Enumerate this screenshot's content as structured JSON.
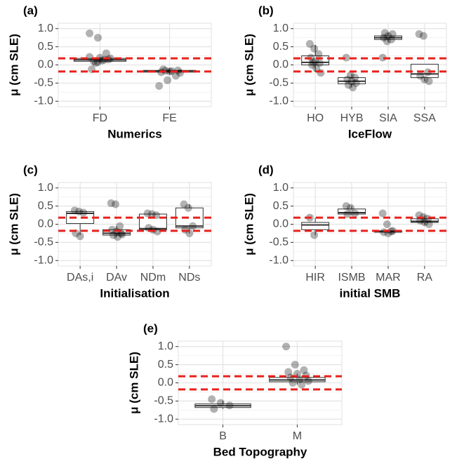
{
  "chart_data": [
    {
      "type": "box",
      "panel_label": "(a)",
      "y_label": "μ (cm SLE)",
      "x_label": "Numerics",
      "categories": [
        "FD",
        "FE"
      ],
      "boxes": [
        {
          "whislo": 0.05,
          "q1": 0.1,
          "med": 0.14,
          "q3": 0.18,
          "whishi": 0.22
        },
        {
          "whislo": -0.25,
          "q1": -0.2,
          "med": -0.17,
          "q3": -0.15,
          "whishi": -0.1
        }
      ],
      "points": [
        [
          0.87,
          0.75,
          0.32,
          -0.12,
          0.2,
          0.15,
          0.1,
          0.12,
          0.18,
          0.05,
          0.14,
          0.22,
          0.08
        ],
        [
          -0.58,
          -0.42,
          -0.3,
          -0.2,
          -0.18,
          -0.15,
          -0.12,
          -0.17,
          -0.22,
          -0.16
        ]
      ],
      "ylim": [
        -1.15,
        1.15
      ],
      "yticks": [
        {
          "value": -1,
          "label": "-1.0"
        },
        {
          "value": -0.5,
          "label": "-0.5"
        },
        {
          "value": 0,
          "label": "0.0"
        },
        {
          "value": 0.5,
          "label": "0.5"
        },
        {
          "value": 1,
          "label": "1.0"
        }
      ],
      "reference_lines": [
        0.18,
        -0.18
      ],
      "reference_color": "#e8211b",
      "point_color": "#000000",
      "grid": true
    },
    {
      "type": "box",
      "panel_label": "(b)",
      "y_label": "μ (cm SLE)",
      "x_label": "IceFlow",
      "categories": [
        "HO",
        "HYB",
        "SIA",
        "SSA"
      ],
      "boxes": [
        {
          "whislo": -0.2,
          "q1": 0.0,
          "med": 0.07,
          "q3": 0.25,
          "whishi": 0.55
        },
        {
          "whislo": -0.62,
          "q1": -0.52,
          "med": -0.45,
          "q3": -0.35,
          "whishi": -0.25
        },
        {
          "whislo": 0.62,
          "q1": 0.7,
          "med": 0.75,
          "q3": 0.8,
          "whishi": 0.88
        },
        {
          "whislo": -0.45,
          "q1": -0.35,
          "med": -0.25,
          "q3": 0.02,
          "whishi": 0.02
        }
      ],
      "points": [
        [
          0.58,
          0.45,
          0.3,
          0.2,
          0.1,
          0.05,
          0.0,
          -0.1,
          -0.22,
          0.07
        ],
        [
          0.2,
          -0.28,
          -0.35,
          -0.4,
          -0.45,
          -0.5,
          -0.55,
          -0.62
        ],
        [
          0.2,
          0.65,
          0.7,
          0.75,
          0.8,
          0.85,
          0.88
        ],
        [
          0.85,
          0.8,
          -0.2,
          -0.3,
          -0.4,
          -0.45
        ]
      ],
      "ylim": [
        -1.15,
        1.15
      ],
      "yticks": [
        {
          "value": -1,
          "label": "-1.0"
        },
        {
          "value": -0.5,
          "label": "-0.5"
        },
        {
          "value": 0,
          "label": "0.0"
        },
        {
          "value": 0.5,
          "label": "0.5"
        },
        {
          "value": 1,
          "label": "1.0"
        }
      ],
      "reference_lines": [
        0.18,
        -0.18
      ],
      "reference_color": "#e8211b",
      "point_color": "#000000",
      "grid": true
    },
    {
      "type": "box",
      "panel_label": "(c)",
      "y_label": "μ (cm SLE)",
      "x_label": "Initialisation",
      "categories": [
        "DAs,i",
        "DAv",
        "NDm",
        "NDs"
      ],
      "boxes": [
        {
          "whislo": -0.3,
          "q1": 0.02,
          "med": 0.3,
          "q3": 0.35,
          "whishi": 0.38
        },
        {
          "whislo": -0.35,
          "q1": -0.3,
          "med": -0.25,
          "q3": -0.15,
          "whishi": -0.05
        },
        {
          "whislo": -0.22,
          "q1": -0.15,
          "med": -0.12,
          "q3": 0.28,
          "whishi": 0.3
        },
        {
          "whislo": -0.25,
          "q1": -0.1,
          "med": -0.05,
          "q3": 0.45,
          "whishi": 0.55
        }
      ],
      "points": [
        [
          0.38,
          0.35,
          0.32,
          -0.25,
          -0.33
        ],
        [
          0.58,
          0.55,
          -0.05,
          -0.15,
          -0.2,
          -0.25,
          -0.3,
          -0.35,
          -0.28
        ],
        [
          0.3,
          0.28,
          0.25,
          -0.1,
          -0.15,
          -0.2
        ],
        [
          0.55,
          0.45,
          -0.05,
          -0.15,
          -0.25
        ]
      ],
      "ylim": [
        -1.15,
        1.15
      ],
      "yticks": [
        {
          "value": -1,
          "label": "-1.0"
        },
        {
          "value": -0.5,
          "label": "-0.5"
        },
        {
          "value": 0,
          "label": "0.0"
        },
        {
          "value": 0.5,
          "label": "0.5"
        },
        {
          "value": 1,
          "label": "1.0"
        }
      ],
      "reference_lines": [
        0.18,
        -0.18
      ],
      "reference_color": "#e8211b",
      "point_color": "#000000",
      "grid": true
    },
    {
      "type": "box",
      "panel_label": "(d)",
      "y_label": "μ (cm SLE)",
      "x_label": "initial SMB",
      "categories": [
        "HIR",
        "ISMB",
        "MAR",
        "RA"
      ],
      "boxes": [
        {
          "whislo": -0.3,
          "q1": -0.15,
          "med": -0.02,
          "q3": 0.05,
          "whishi": 0.18
        },
        {
          "whislo": 0.25,
          "q1": 0.28,
          "med": 0.32,
          "q3": 0.42,
          "whishi": 0.5
        },
        {
          "whislo": -0.25,
          "q1": -0.22,
          "med": -0.2,
          "q3": -0.18,
          "whishi": -0.15
        },
        {
          "whislo": -0.02,
          "q1": 0.05,
          "med": 0.08,
          "q3": 0.15,
          "whishi": 0.25
        }
      ],
      "points": [
        [
          0.18,
          -0.3
        ],
        [
          0.5,
          0.45,
          0.3,
          0.28
        ],
        [
          0.3,
          0.0,
          -0.2,
          -0.22,
          -0.25,
          -0.18
        ],
        [
          0.25,
          0.2,
          0.15,
          0.1,
          0.05,
          0.0
        ]
      ],
      "ylim": [
        -1.15,
        1.15
      ],
      "yticks": [
        {
          "value": -1,
          "label": "-1.0"
        },
        {
          "value": -0.5,
          "label": "-0.5"
        },
        {
          "value": 0,
          "label": "0.0"
        },
        {
          "value": 0.5,
          "label": "0.5"
        },
        {
          "value": 1,
          "label": "1.0"
        }
      ],
      "reference_lines": [
        0.18,
        -0.18
      ],
      "reference_color": "#e8211b",
      "point_color": "#000000",
      "grid": true
    },
    {
      "type": "box",
      "panel_label": "(e)",
      "y_label": "μ (cm SLE)",
      "x_label": "Bed Topography",
      "categories": [
        "B",
        "M"
      ],
      "boxes": [
        {
          "whislo": -0.72,
          "q1": -0.68,
          "med": -0.63,
          "q3": -0.58,
          "whishi": -0.5
        },
        {
          "whislo": -0.05,
          "q1": 0.03,
          "med": 0.08,
          "q3": 0.15,
          "whishi": 0.25
        }
      ],
      "points": [
        [
          -0.45,
          -0.55,
          -0.62,
          -0.72
        ],
        [
          1.0,
          0.5,
          0.35,
          0.3,
          0.25,
          0.2,
          0.15,
          0.1,
          0.05,
          0.0,
          -0.05
        ]
      ],
      "ylim": [
        -1.15,
        1.15
      ],
      "yticks": [
        {
          "value": -1,
          "label": "-1.0"
        },
        {
          "value": -0.5,
          "label": "-0.5"
        },
        {
          "value": 0,
          "label": "0.0"
        },
        {
          "value": 0.5,
          "label": "0.5"
        },
        {
          "value": 1,
          "label": "1.0"
        }
      ],
      "reference_lines": [
        0.18,
        -0.18
      ],
      "reference_color": "#e8211b",
      "point_color": "#000000",
      "grid": true
    }
  ]
}
